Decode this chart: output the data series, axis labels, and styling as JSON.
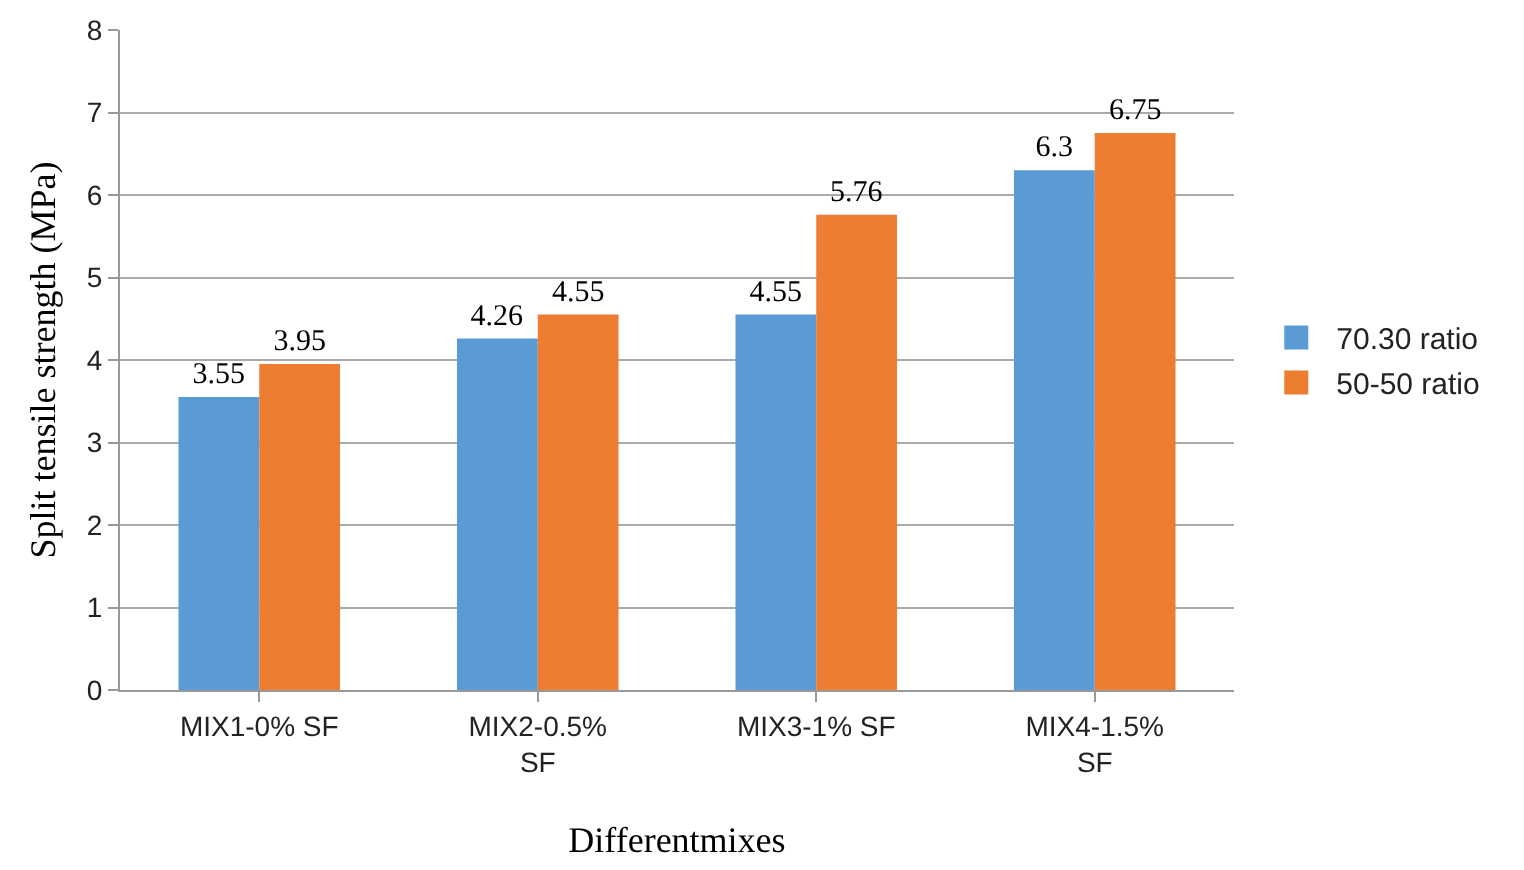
{
  "chart_data": {
    "type": "bar",
    "xlabel": "Differentmixes",
    "ylabel": "Split tensile strength (MPa)",
    "categories": [
      "MIX1-0% SF",
      "MIX2-0.5% SF",
      "MIX3-1% SF",
      "MIX4-1.5% SF"
    ],
    "series": [
      {
        "name": "70.30 ratio",
        "color": "#5b9bd5",
        "values": [
          3.55,
          4.26,
          4.55,
          6.3
        ],
        "value_labels": [
          "3.55",
          "4.26",
          "4.55",
          "6.3"
        ]
      },
      {
        "name": "50-50 ratio",
        "color": "#ed7d31",
        "values": [
          3.95,
          4.55,
          5.76,
          6.75
        ],
        "value_labels": [
          "3.95",
          "4.55",
          "5.76",
          "6.75"
        ]
      }
    ],
    "ylim": [
      0,
      8
    ],
    "yticks": [
      0,
      1,
      2,
      3,
      4,
      5,
      6,
      7,
      8
    ],
    "grid": "y",
    "legend": "right"
  }
}
